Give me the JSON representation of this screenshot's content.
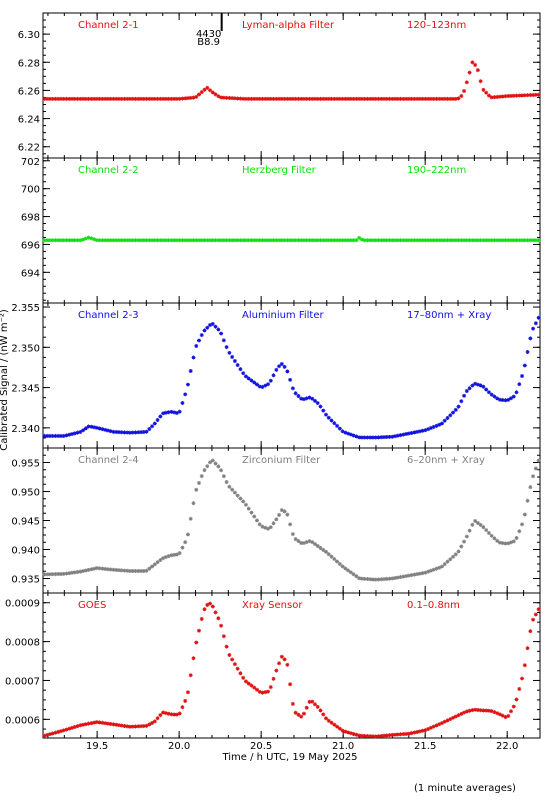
{
  "chart_data": {
    "type": "scatter",
    "xlabel": "Time / h UTC, 19 May 2025",
    "ylabel": "Calibrated Signal / (nW m⁻²)",
    "footnote": "(1 minute averages)",
    "xlim": [
      19.17,
      22.2
    ],
    "xticks": [
      19.5,
      20.0,
      20.5,
      21.0,
      21.5,
      22.0
    ],
    "event_marker": {
      "x": 20.18,
      "line1": "4430",
      "line2": "B8.9"
    },
    "panels": [
      {
        "channel": "Channel 2-1",
        "filter": "Lyman-alpha Filter",
        "band": "120–123nm",
        "color": "#e01010",
        "ylim": [
          6.212,
          6.315
        ],
        "yticks": [
          "6.22",
          "6.24",
          "6.26",
          "6.28",
          "6.30"
        ],
        "ytick_values": [
          6.22,
          6.24,
          6.26,
          6.28,
          6.3
        ],
        "series_x": [
          19.17,
          19.5,
          20.0,
          20.1,
          20.14,
          20.17,
          20.2,
          20.25,
          20.4,
          21.0,
          21.5,
          21.7,
          21.73,
          21.76,
          21.79,
          21.82,
          21.85,
          21.9,
          22.0,
          22.2
        ],
        "series_y": [
          6.254,
          6.254,
          6.254,
          6.255,
          6.259,
          6.262,
          6.259,
          6.255,
          6.254,
          6.254,
          6.254,
          6.254,
          6.257,
          6.268,
          6.281,
          6.275,
          6.261,
          6.255,
          6.256,
          6.257
        ]
      },
      {
        "channel": "Channel 2-2",
        "filter": "Herzberg Filter",
        "band": "190–222nm",
        "color": "#10e010",
        "ylim": [
          691.8,
          702.2
        ],
        "yticks": [
          "694",
          "696",
          "698",
          "700",
          "702"
        ],
        "ytick_values": [
          694,
          696,
          698,
          700,
          702
        ],
        "series_x": [
          19.17,
          19.4,
          19.45,
          19.5,
          20.0,
          21.0,
          21.08,
          21.1,
          21.12,
          21.5,
          22.2
        ],
        "series_y": [
          696.3,
          696.3,
          696.5,
          696.3,
          696.3,
          696.3,
          696.3,
          696.5,
          696.3,
          696.3,
          696.3
        ]
      },
      {
        "channel": "Channel 2-3",
        "filter": "Aluminium Filter",
        "band": "17–80nm + Xray",
        "color": "#1010e0",
        "ylim": [
          2.3375,
          2.3555
        ],
        "yticks": [
          "2.340",
          "2.345",
          "2.350",
          "2.355"
        ],
        "ytick_values": [
          2.34,
          2.345,
          2.35,
          2.355
        ],
        "series_x": [
          19.17,
          19.3,
          19.4,
          19.45,
          19.5,
          19.6,
          19.7,
          19.8,
          19.85,
          19.9,
          19.95,
          20.0,
          20.05,
          20.1,
          20.15,
          20.2,
          20.25,
          20.3,
          20.4,
          20.5,
          20.55,
          20.6,
          20.63,
          20.66,
          20.7,
          20.75,
          20.8,
          20.85,
          20.9,
          21.0,
          21.1,
          21.2,
          21.3,
          21.4,
          21.5,
          21.6,
          21.7,
          21.75,
          21.8,
          21.85,
          21.9,
          21.95,
          22.0,
          22.05,
          22.1,
          22.15,
          22.2
        ],
        "series_y": [
          2.339,
          2.339,
          2.3395,
          2.3402,
          2.34,
          2.3395,
          2.3394,
          2.3395,
          2.3405,
          2.3418,
          2.342,
          2.3418,
          2.345,
          2.35,
          2.352,
          2.353,
          2.352,
          2.3495,
          2.3465,
          2.345,
          2.3455,
          2.3475,
          2.348,
          2.347,
          2.3445,
          2.3435,
          2.3438,
          2.343,
          2.3415,
          2.3395,
          2.3388,
          2.3388,
          2.3389,
          2.3393,
          2.3397,
          2.3405,
          2.3425,
          2.3445,
          2.3455,
          2.3452,
          2.3442,
          2.3435,
          2.3434,
          2.344,
          2.347,
          2.352,
          2.354
        ]
      },
      {
        "channel": "Channel 2-4",
        "filter": "Zirconium Filter",
        "band": "6–20nm + Xray",
        "color": "#808080",
        "ylim": [
          0.9325,
          0.9575
        ],
        "yticks": [
          "0.935",
          "0.940",
          "0.945",
          "0.950",
          "0.955"
        ],
        "ytick_values": [
          0.935,
          0.94,
          0.945,
          0.95,
          0.955
        ],
        "series_x": [
          19.17,
          19.3,
          19.4,
          19.5,
          19.6,
          19.7,
          19.8,
          19.9,
          19.95,
          20.0,
          20.05,
          20.1,
          20.15,
          20.2,
          20.25,
          20.3,
          20.4,
          20.5,
          20.55,
          20.6,
          20.63,
          20.66,
          20.7,
          20.75,
          20.8,
          20.85,
          20.9,
          21.0,
          21.1,
          21.2,
          21.3,
          21.4,
          21.5,
          21.6,
          21.7,
          21.75,
          21.8,
          21.85,
          21.9,
          21.95,
          22.0,
          22.05,
          22.1,
          22.15,
          22.2
        ],
        "series_y": [
          0.9357,
          0.9358,
          0.9362,
          0.9368,
          0.9365,
          0.9363,
          0.9363,
          0.9385,
          0.939,
          0.9392,
          0.942,
          0.95,
          0.9535,
          0.9555,
          0.954,
          0.951,
          0.948,
          0.944,
          0.9435,
          0.9455,
          0.947,
          0.946,
          0.942,
          0.941,
          0.9415,
          0.9405,
          0.9395,
          0.937,
          0.935,
          0.9348,
          0.935,
          0.9355,
          0.936,
          0.937,
          0.9395,
          0.942,
          0.945,
          0.944,
          0.9425,
          0.9412,
          0.941,
          0.9415,
          0.945,
          0.952,
          0.956
        ]
      },
      {
        "channel": "GOES",
        "filter": "Xray Sensor",
        "band": "0.1–0.8nm",
        "color": "#e01010",
        "ylim": [
          0.000552,
          0.000925
        ],
        "yticks": [
          "0.0006",
          "0.0007",
          "0.0008",
          "0.0009"
        ],
        "ytick_values": [
          0.0006,
          0.0007,
          0.0008,
          0.0009
        ],
        "series_x": [
          19.17,
          19.3,
          19.4,
          19.5,
          19.6,
          19.7,
          19.8,
          19.85,
          19.9,
          19.95,
          20.0,
          20.05,
          20.1,
          20.15,
          20.18,
          20.2,
          20.25,
          20.3,
          20.4,
          20.5,
          20.55,
          20.6,
          20.63,
          20.66,
          20.7,
          20.75,
          20.8,
          20.85,
          20.9,
          21.0,
          21.1,
          21.2,
          21.3,
          21.4,
          21.5,
          21.6,
          21.7,
          21.75,
          21.8,
          21.85,
          21.9,
          21.95,
          22.0,
          22.05,
          22.1,
          22.15,
          22.2
        ],
        "series_y": [
          0.000557,
          0.000572,
          0.000585,
          0.000593,
          0.000587,
          0.000581,
          0.000583,
          0.000594,
          0.000618,
          0.000613,
          0.000612,
          0.00066,
          0.00079,
          0.00088,
          0.0009,
          0.000895,
          0.00085,
          0.00077,
          0.0007,
          0.000668,
          0.000672,
          0.000735,
          0.000765,
          0.00074,
          0.00062,
          0.000605,
          0.00065,
          0.00063,
          0.0006,
          0.00057,
          0.000558,
          0.000556,
          0.00056,
          0.000563,
          0.000572,
          0.00059,
          0.00061,
          0.00062,
          0.000625,
          0.000623,
          0.000622,
          0.000614,
          0.000604,
          0.00064,
          0.00072,
          0.00085,
          0.00089
        ]
      }
    ]
  }
}
